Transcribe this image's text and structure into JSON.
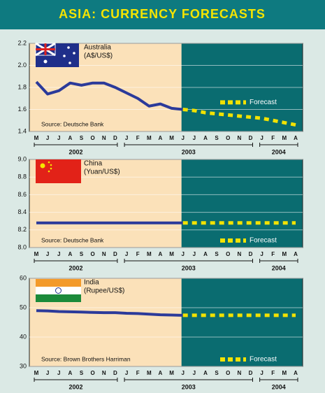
{
  "title": "ASIA: CURRENCY FORECASTS",
  "chart_data": [
    {
      "type": "line",
      "name": "Australia",
      "unit": "(A$/US$)",
      "source": "Source: Deutsche Bank",
      "legend": "center right",
      "category_groups": [
        {
          "label": "2002",
          "categories": [
            "M",
            "J",
            "J",
            "A",
            "S",
            "O",
            "N",
            "D"
          ]
        },
        {
          "label": "2003",
          "categories": [
            "J",
            "F",
            "M",
            "A",
            "M",
            "J",
            "J",
            "A",
            "S",
            "O",
            "N",
            "D"
          ]
        },
        {
          "label": "2004",
          "categories": [
            "J",
            "F",
            "M",
            "A"
          ]
        }
      ],
      "ylim": [
        1.4,
        2.2
      ],
      "yticks": [
        1.4,
        1.6,
        1.8,
        {
          "value": 2,
          "label": "2.0"
        },
        2.2
      ],
      "grid": true,
      "series": [
        {
          "color": "#2b3a9a",
          "values": [
            1.85,
            1.74,
            1.77,
            1.84,
            1.82,
            1.84,
            1.84,
            1.8,
            1.75,
            1.7,
            1.63,
            1.65,
            1.61,
            1.6,
            null,
            null,
            null,
            null,
            null,
            null,
            null,
            null,
            null,
            null
          ]
        },
        {
          "name": "Forecast",
          "color": "#f2e200",
          "dashed": true,
          "values": [
            null,
            null,
            null,
            null,
            null,
            null,
            null,
            null,
            null,
            null,
            null,
            null,
            null,
            1.6,
            1.59,
            1.57,
            1.56,
            1.55,
            1.54,
            1.53,
            1.52,
            1.5,
            1.48,
            1.46
          ]
        }
      ]
    },
    {
      "type": "line",
      "name": "China",
      "unit": "(Yuan/US$)",
      "source": "Source: Deutsche Bank",
      "legend": "lower right",
      "category_groups": [
        {
          "label": "2002",
          "categories": [
            "M",
            "J",
            "J",
            "A",
            "S",
            "O",
            "N",
            "D"
          ]
        },
        {
          "label": "2003",
          "categories": [
            "J",
            "F",
            "M",
            "A",
            "M",
            "J",
            "J",
            "A",
            "S",
            "O",
            "N",
            "D"
          ]
        },
        {
          "label": "2004",
          "categories": [
            "J",
            "F",
            "M",
            "A"
          ]
        }
      ],
      "ylim": [
        8,
        9
      ],
      "yticks": [
        {
          "value": 8,
          "label": "8.0"
        },
        8.2,
        8.4,
        8.6,
        8.8,
        {
          "value": 9,
          "label": "9.0"
        }
      ],
      "grid": true,
      "series": [
        {
          "color": "#2b3a9a",
          "values": [
            8.28,
            8.28,
            8.28,
            8.28,
            8.28,
            8.28,
            8.28,
            8.28,
            8.28,
            8.28,
            8.28,
            8.28,
            8.28,
            8.28,
            null,
            null,
            null,
            null,
            null,
            null,
            null,
            null,
            null,
            null
          ]
        },
        {
          "name": "Forecast",
          "color": "#f2e200",
          "dashed": true,
          "values": [
            null,
            null,
            null,
            null,
            null,
            null,
            null,
            null,
            null,
            null,
            null,
            null,
            null,
            8.28,
            8.28,
            8.28,
            8.28,
            8.28,
            8.28,
            8.28,
            8.28,
            8.28,
            8.28,
            8.28
          ]
        }
      ]
    },
    {
      "type": "line",
      "name": "India",
      "unit": "(Rupee/US$)",
      "source": "Source: Brown Brothers Harriman",
      "legend": "lower right",
      "category_groups": [
        {
          "label": "2002",
          "categories": [
            "M",
            "J",
            "J",
            "A",
            "S",
            "O",
            "N",
            "D"
          ]
        },
        {
          "label": "2003",
          "categories": [
            "J",
            "F",
            "M",
            "A",
            "M",
            "J",
            "J",
            "A",
            "S",
            "O",
            "N",
            "D"
          ]
        },
        {
          "label": "2004",
          "categories": [
            "J",
            "F",
            "M",
            "A"
          ]
        }
      ],
      "ylim": [
        30,
        60
      ],
      "yticks": [
        30,
        40,
        50,
        60
      ],
      "grid": true,
      "series": [
        {
          "color": "#2b3a9a",
          "values": [
            49,
            48.9,
            48.7,
            48.6,
            48.5,
            48.4,
            48.3,
            48.3,
            48.1,
            48,
            47.8,
            47.6,
            47.5,
            47.4,
            null,
            null,
            null,
            null,
            null,
            null,
            null,
            null,
            null,
            null
          ]
        },
        {
          "name": "Forecast",
          "color": "#f2e200",
          "dashed": true,
          "values": [
            null,
            null,
            null,
            null,
            null,
            null,
            null,
            null,
            null,
            null,
            null,
            null,
            null,
            47.4,
            47.4,
            47.4,
            47.4,
            47.4,
            47.4,
            47.4,
            47.4,
            47.4,
            47.4,
            47.4
          ]
        }
      ]
    }
  ]
}
